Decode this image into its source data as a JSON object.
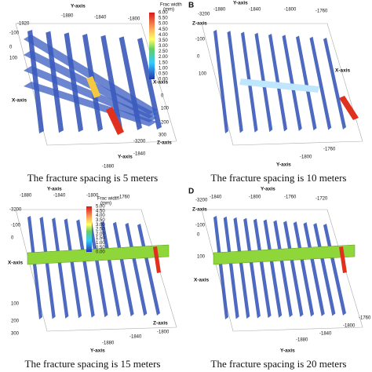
{
  "panels": [
    {
      "caption": "The fracture spacing is 5 meters",
      "axis_labels": [
        "Y-axis",
        "X-axis",
        "Y-axis",
        "X-axis",
        "Z-axis"
      ],
      "tick_labels": [
        "-1920",
        "-1880",
        "-1840",
        "-1800",
        "-100",
        "0",
        "100",
        "-1880",
        "-1840",
        "0",
        "100",
        "200",
        "300",
        "-3200"
      ],
      "colorbar": {
        "title": "Frac width",
        "unit": "(mm)",
        "labels": [
          "6.00",
          "5.50",
          "5.00",
          "4.50",
          "4.00",
          "3.50",
          "3.00",
          "2.50",
          "2.00",
          "1.50",
          "1.00",
          "0.50",
          "0.00"
        ]
      }
    },
    {
      "label": "B",
      "caption": "The fracture spacing is 10 meters",
      "axis_labels": [
        "Y-axis",
        "Z-axis",
        "X-axis",
        "Y-axis"
      ],
      "tick_labels": [
        "-1880",
        "-1840",
        "-1800",
        "-1760",
        "-3200",
        "-100",
        "0",
        "100",
        "-1800",
        "-1760"
      ]
    },
    {
      "caption": "The fracture spacing is 15 meters",
      "axis_labels": [
        "Y-axis",
        "X-axis",
        "Y-axis",
        "Z-axis"
      ],
      "tick_labels": [
        "-1880",
        "-1840",
        "-1800",
        "-1760",
        "-3200",
        "-100",
        "0",
        "100",
        "200",
        "300",
        "-1880",
        "-1840",
        "-1800"
      ],
      "colorbar": {
        "title": "Frac width",
        "unit": "(mm)",
        "labels": [
          "5.00",
          "4.50",
          "4.00",
          "3.50",
          "3.00",
          "2.50",
          "2.00",
          "1.50",
          "1.00",
          "0.50",
          "0.00"
        ]
      }
    },
    {
      "label": "D",
      "caption": "The fracture spacing is 20 meters",
      "axis_labels": [
        "Y-axis",
        "Z-axis",
        "X-axis",
        "Y-axis"
      ],
      "tick_labels": [
        "-1840",
        "-1800",
        "-1760",
        "-1720",
        "-3200",
        "-100",
        "0",
        "100",
        "-1880",
        "-1840",
        "-1800",
        "-1760"
      ]
    }
  ]
}
